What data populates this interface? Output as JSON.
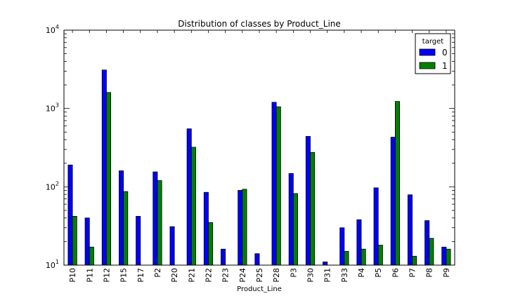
{
  "chart_data": {
    "type": "bar",
    "title": "Distribution of classes by Product_Line",
    "xlabel": "Product_Line",
    "ylabel": "",
    "yscale": "log",
    "ylim": [
      10,
      10000
    ],
    "grid": false,
    "legend_position": "top-right",
    "legend_title": "target",
    "y_tick_labels": [
      {
        "base": "10",
        "exp": "1",
        "value": 10
      },
      {
        "base": "10",
        "exp": "2",
        "value": 100
      },
      {
        "base": "10",
        "exp": "3",
        "value": 1000
      },
      {
        "base": "10",
        "exp": "4",
        "value": 10000
      }
    ],
    "categories": [
      "P10",
      "P11",
      "P12",
      "P15",
      "P17",
      "P2",
      "P20",
      "P21",
      "P22",
      "P23",
      "P24",
      "P25",
      "P28",
      "P3",
      "P30",
      "P31",
      "P33",
      "P4",
      "P5",
      "P6",
      "P7",
      "P8",
      "P9"
    ],
    "series": [
      {
        "name": "0",
        "color": "#0000ff",
        "values": [
          190,
          40,
          3100,
          160,
          42,
          155,
          31,
          550,
          85,
          16,
          90,
          14,
          1200,
          148,
          440,
          11,
          30,
          38,
          97,
          430,
          79,
          37,
          17
        ]
      },
      {
        "name": "1",
        "color": "#008000",
        "values": [
          42,
          17,
          1600,
          87,
          null,
          120,
          null,
          320,
          35,
          null,
          93,
          null,
          1050,
          82,
          275,
          null,
          15,
          16,
          18,
          1230,
          13,
          22,
          16
        ]
      }
    ]
  }
}
